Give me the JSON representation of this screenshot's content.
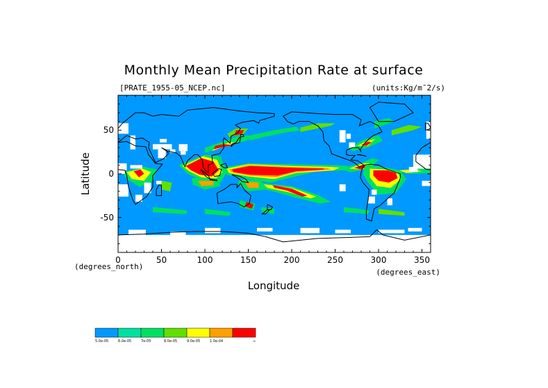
{
  "figure": {
    "title": "Monthly Mean Precipitation Rate at surface",
    "file_label": "[PRATE_1955-05_NCEP.nc]",
    "units_label": "(units:Kg/m¯2/s)",
    "xlabel": "Longitude",
    "ylabel": "Latitude",
    "x_unit_label": "(degrees_east)",
    "y_unit_label": "(degrees_north)"
  },
  "chart_data": {
    "type": "heatmap",
    "title": "Monthly Mean Precipitation Rate at surface",
    "xlabel": "Longitude",
    "ylabel": "Latitude",
    "xlim": [
      0,
      360
    ],
    "ylim": [
      -90,
      90
    ],
    "x_ticks": [
      0,
      50,
      100,
      150,
      200,
      250,
      300,
      350
    ],
    "y_ticks": [
      -50,
      0,
      50
    ],
    "x_tick_labels": [
      "0",
      "50",
      "100",
      "150",
      "200",
      "250",
      "300",
      "350"
    ],
    "y_tick_labels": [
      "-50",
      "0",
      "50"
    ],
    "colorbar": {
      "colors": [
        "#0099ff",
        "#00e0a0",
        "#00e060",
        "#60e000",
        "#ffff00",
        "#ffa000",
        "#ff0000"
      ],
      "labels": [
        "5.0e-05",
        "6.0e-05",
        "7e-05",
        "8.0e-05",
        "9.0e-05",
        "1.0e-04",
        "∞"
      ]
    },
    "background_color": "#0099ff",
    "missing_color": "#ffffff"
  }
}
